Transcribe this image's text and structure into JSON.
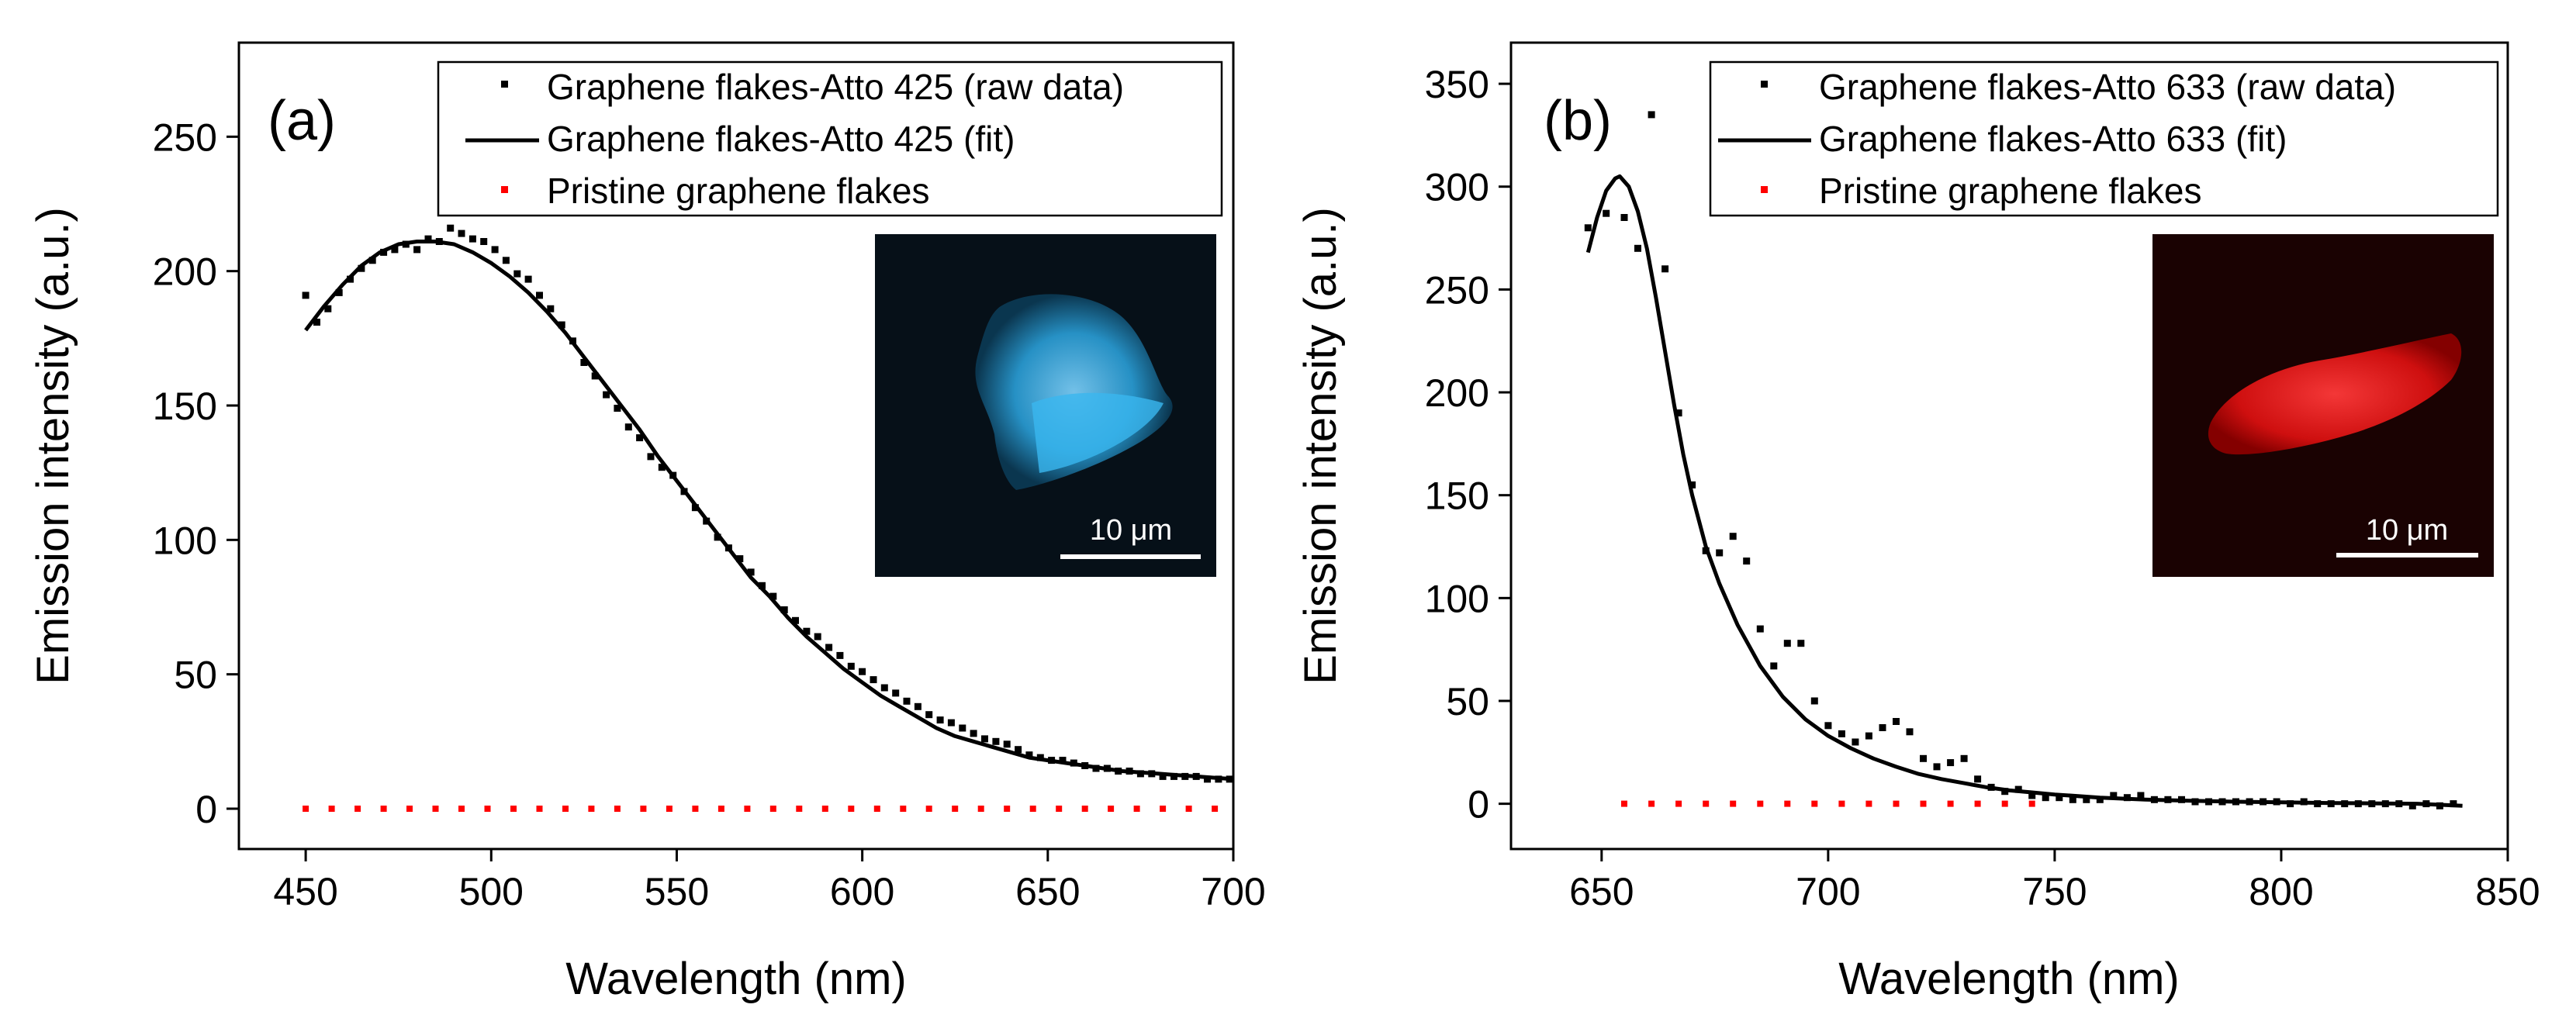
{
  "chart_data": [
    {
      "type": "scatter",
      "panel_label": "(a)",
      "xlabel": "Wavelength (nm)",
      "ylabel": "Emission intensity (a.u.)",
      "xlim": [
        432,
        700
      ],
      "ylim": [
        -15,
        285
      ],
      "xticks": [
        450,
        500,
        550,
        600,
        650,
        700
      ],
      "yticks": [
        0,
        50,
        100,
        150,
        200,
        250
      ],
      "legend_position": "top-right",
      "series": [
        {
          "name": "Graphene flakes-Atto 425 (raw data)",
          "style": "points",
          "color": "#000000",
          "x": [
            450,
            453,
            456,
            459,
            462,
            465,
            468,
            471,
            474,
            477,
            480,
            483,
            486,
            489,
            492,
            495,
            498,
            501,
            504,
            507,
            510,
            513,
            516,
            519,
            522,
            525,
            528,
            531,
            534,
            537,
            540,
            543,
            546,
            549,
            552,
            555,
            558,
            561,
            564,
            567,
            570,
            573,
            576,
            579,
            582,
            585,
            588,
            591,
            594,
            597,
            600,
            603,
            606,
            609,
            612,
            615,
            618,
            621,
            624,
            627,
            630,
            633,
            636,
            639,
            642,
            645,
            648,
            651,
            654,
            657,
            660,
            663,
            666,
            669,
            672,
            675,
            678,
            681,
            684,
            687,
            690,
            693,
            696,
            699
          ],
          "y": [
            191,
            181,
            186,
            192,
            197,
            201,
            204,
            207,
            208,
            210,
            208,
            212,
            211,
            216,
            214,
            212,
            211,
            208,
            204,
            199,
            197,
            191,
            186,
            180,
            174,
            166,
            161,
            154,
            149,
            142,
            138,
            131,
            127,
            124,
            118,
            112,
            107,
            101,
            97,
            93,
            88,
            83,
            79,
            74,
            70,
            66,
            64,
            60,
            57,
            53,
            51,
            48,
            45,
            43,
            40,
            38,
            35,
            33,
            32,
            30,
            28,
            26,
            25,
            24,
            22,
            20,
            19,
            18,
            18,
            17,
            16,
            15,
            15,
            14,
            14,
            13,
            13,
            12,
            12,
            12,
            12,
            11,
            11,
            11
          ]
        },
        {
          "name": "Graphene flakes-Atto 425 (fit)",
          "style": "line",
          "color": "#000000",
          "x": [
            450,
            455,
            460,
            465,
            470,
            475,
            480,
            485,
            490,
            495,
            500,
            505,
            510,
            515,
            520,
            525,
            530,
            535,
            540,
            545,
            550,
            555,
            560,
            565,
            570,
            575,
            580,
            585,
            590,
            595,
            600,
            605,
            610,
            615,
            620,
            625,
            630,
            635,
            640,
            645,
            650,
            655,
            660,
            665,
            670,
            675,
            680,
            685,
            690,
            695,
            700
          ],
          "y": [
            178,
            187,
            195,
            202,
            207,
            210,
            211,
            211,
            210,
            207,
            203,
            198,
            192,
            185,
            177,
            168,
            159,
            150,
            141,
            131,
            122,
            113,
            104,
            95,
            86,
            79,
            71,
            64,
            58,
            52,
            47,
            42,
            38,
            34,
            30,
            27,
            25,
            23,
            21,
            19,
            18,
            17,
            16,
            15,
            14,
            13.5,
            13,
            12.5,
            12,
            11.5,
            11
          ]
        },
        {
          "name": "Pristine graphene flakes",
          "style": "points",
          "color": "#ff0000",
          "x": [
            450,
            457,
            464,
            471,
            478,
            485,
            492,
            499,
            506,
            513,
            520,
            527,
            534,
            541,
            548,
            555,
            562,
            569,
            576,
            583,
            590,
            597,
            604,
            611,
            618,
            625,
            632,
            639,
            646,
            653,
            660,
            667,
            674,
            681,
            688,
            695
          ],
          "y": [
            0,
            0,
            0,
            0,
            0,
            0,
            0,
            0,
            0,
            0,
            0,
            0,
            0,
            0,
            0,
            0,
            0,
            0,
            0,
            0,
            0,
            0,
            0,
            0,
            0,
            0,
            0,
            0,
            0,
            0,
            0,
            0,
            0,
            0,
            0,
            0
          ]
        }
      ],
      "inset": {
        "image": "Atto 425 fluorescence micrograph (cyan flake)",
        "scale_bar": "10 μm"
      }
    },
    {
      "type": "scatter",
      "panel_label": "(b)",
      "xlabel": "Wavelength (nm)",
      "ylabel": "Emission intensity (a.u.)",
      "xlim": [
        630,
        850
      ],
      "ylim": [
        -22,
        370
      ],
      "xticks": [
        650,
        700,
        750,
        800,
        850
      ],
      "yticks": [
        0,
        50,
        100,
        150,
        200,
        250,
        300,
        350
      ],
      "legend_position": "top-right",
      "series": [
        {
          "name": "Graphene flakes-Atto 633 (raw data)",
          "style": "points",
          "color": "#000000",
          "x": [
            647,
            651,
            655,
            658,
            661,
            664,
            667,
            670,
            673,
            676,
            679,
            682,
            685,
            688,
            691,
            694,
            697,
            700,
            703,
            706,
            709,
            712,
            715,
            718,
            721,
            724,
            727,
            730,
            733,
            736,
            739,
            742,
            745,
            748,
            751,
            754,
            757,
            760,
            763,
            766,
            769,
            772,
            775,
            778,
            781,
            784,
            787,
            790,
            793,
            796,
            799,
            802,
            805,
            808,
            811,
            814,
            817,
            820,
            823,
            826,
            829,
            832,
            835,
            838
          ],
          "y": [
            280,
            287,
            285,
            270,
            335,
            260,
            190,
            155,
            123,
            122,
            130,
            118,
            85,
            67,
            78,
            78,
            50,
            38,
            34,
            30,
            33,
            37,
            40,
            35,
            22,
            18,
            20,
            22,
            12,
            8,
            6,
            7,
            4,
            3,
            3,
            2,
            2,
            2,
            4,
            3,
            4,
            2,
            2,
            2,
            1,
            1,
            1,
            1,
            1,
            1,
            1,
            0,
            1,
            0,
            0,
            0,
            0,
            0,
            0,
            0,
            -1,
            0,
            -1,
            0
          ]
        },
        {
          "name": "Graphene flakes-Atto 633 (fit)",
          "style": "line",
          "color": "#000000",
          "x": [
            647,
            649,
            651,
            653,
            654,
            656,
            658,
            660,
            662,
            664,
            666,
            668,
            670,
            673,
            676,
            680,
            685,
            690,
            695,
            700,
            705,
            710,
            715,
            720,
            725,
            730,
            735,
            740,
            745,
            750,
            760,
            770,
            780,
            790,
            800,
            810,
            820,
            830,
            840
          ],
          "y": [
            268,
            285,
            298,
            304,
            305,
            300,
            288,
            270,
            246,
            220,
            194,
            170,
            150,
            125,
            107,
            87,
            67,
            52,
            41,
            33,
            27,
            22,
            18,
            14.5,
            12,
            10,
            8,
            6.5,
            5.5,
            4.5,
            3,
            2,
            1.5,
            1,
            0.7,
            0.4,
            0.2,
            0,
            -1
          ]
        },
        {
          "name": "Pristine graphene flakes",
          "style": "points",
          "color": "#ff0000",
          "x": [
            655,
            661,
            667,
            673,
            679,
            685,
            691,
            697,
            703,
            709,
            715,
            721,
            727,
            733,
            739,
            745
          ],
          "y": [
            0,
            0,
            0,
            0,
            0,
            0,
            0,
            0,
            0,
            0,
            0,
            0,
            0,
            0,
            0,
            0
          ]
        }
      ],
      "inset": {
        "image": "Atto 633 fluorescence micrograph (red flake)",
        "scale_bar": "10 μm"
      }
    }
  ]
}
